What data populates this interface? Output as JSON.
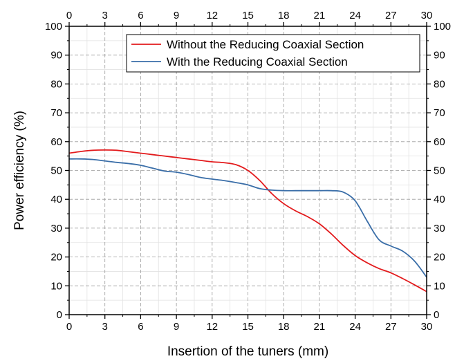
{
  "chart_data": {
    "type": "line",
    "title": "",
    "xlabel": "Insertion of the tuners (mm)",
    "ylabel": "Power efficiency (%)",
    "xlim": [
      0,
      30
    ],
    "ylim": [
      0,
      100
    ],
    "xticks": [
      "0",
      "3",
      "6",
      "9",
      "12",
      "15",
      "18",
      "21",
      "24",
      "27",
      "30"
    ],
    "yticks": [
      "0",
      "10",
      "20",
      "30",
      "40",
      "50",
      "60",
      "70",
      "80",
      "90",
      "100"
    ],
    "grid": true,
    "mirror_axes": true,
    "legend_position": "top-right",
    "series": [
      {
        "name": "Without the Reducing Coaxial Section",
        "color": "#e31a1c",
        "x": [
          0,
          1,
          2,
          3,
          4,
          5,
          6,
          7,
          8,
          9,
          10,
          11,
          12,
          13,
          14,
          15,
          16,
          17,
          18,
          19,
          20,
          21,
          22,
          23,
          24,
          25,
          26,
          27,
          28,
          29,
          30
        ],
        "y": [
          56,
          56.6,
          57,
          57.1,
          57,
          56.5,
          56,
          55.5,
          55,
          54.5,
          54,
          53.5,
          53,
          52.7,
          52,
          50,
          46.5,
          42,
          38.5,
          36,
          34,
          31.5,
          28,
          24,
          20.5,
          18,
          16,
          14.5,
          12.5,
          10.3,
          8
        ]
      },
      {
        "name": "With the Reducing Coaxial Section",
        "color": "#3a6ea8",
        "x": [
          0,
          1,
          2,
          3,
          4,
          5,
          6,
          7,
          8,
          9,
          10,
          11,
          12,
          13,
          14,
          15,
          16,
          17,
          18,
          19,
          20,
          21,
          22,
          23,
          24,
          25,
          26,
          27,
          28,
          29,
          30
        ],
        "y": [
          54,
          54,
          53.8,
          53.3,
          52.8,
          52.4,
          51.8,
          50.8,
          49.8,
          49.4,
          48.6,
          47.6,
          47,
          46.5,
          45.8,
          45,
          43.7,
          43.2,
          43,
          43,
          43,
          43,
          43,
          42.5,
          39.5,
          32.5,
          26,
          23.8,
          22,
          18.5,
          13
        ]
      }
    ]
  }
}
